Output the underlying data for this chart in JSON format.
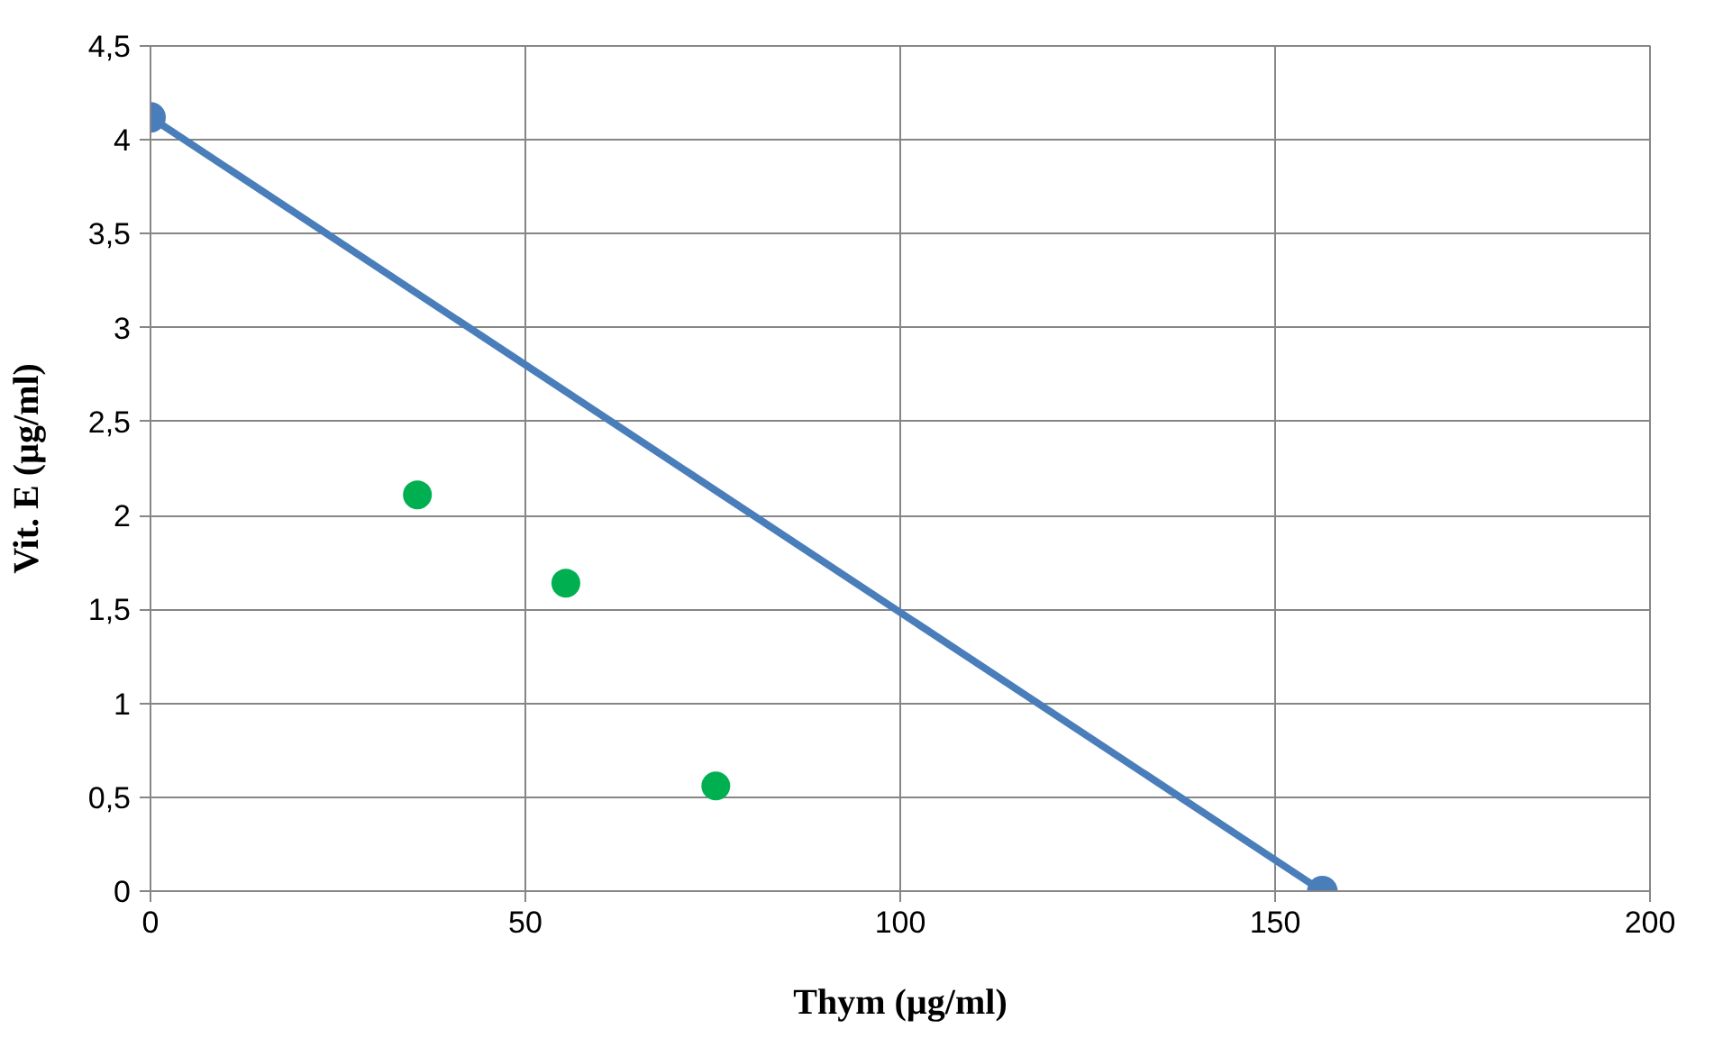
{
  "chart_data": {
    "type": "scatter",
    "xlabel": "Thym (µg/ml)",
    "ylabel": "Vit. E (µg/ml)",
    "series": [
      {
        "type": "line",
        "color": "#4a7ebb",
        "x": [
          0,
          156.3
        ],
        "values": [
          4.12,
          0
        ]
      },
      {
        "color": "#00b050",
        "x": [
          35.6,
          55.4,
          75.4
        ],
        "values": [
          2.11,
          1.64,
          0.56
        ]
      }
    ],
    "xlim": [
      0,
      200
    ],
    "xticks": [
      0,
      50,
      100,
      150,
      200
    ],
    "ylim": [
      0,
      4.5
    ],
    "yticks": [
      0,
      {
        "value": 0.5,
        "label": "0,5"
      },
      1,
      {
        "value": 1.5,
        "label": "1,5"
      },
      2,
      {
        "value": 2.5,
        "label": "2,5"
      },
      3,
      {
        "value": 3.5,
        "label": "3,5"
      },
      4,
      {
        "value": 4.5,
        "label": "4,5"
      }
    ],
    "grid": true,
    "marker": "circle",
    "line_style": "solid"
  }
}
